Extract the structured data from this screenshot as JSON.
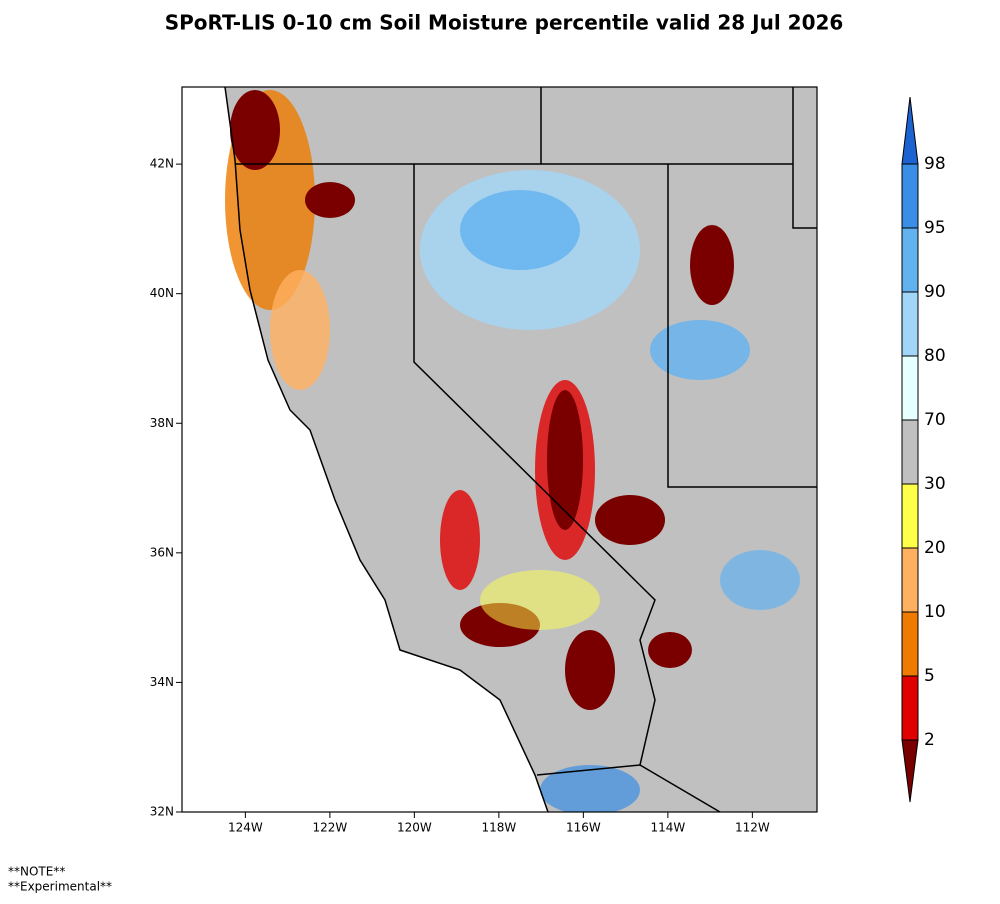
{
  "title": "SPoRT-LIS 0-10 cm Soil Moisture percentile valid 28 Jul 2026",
  "map": {
    "lonlim": [
      -125.5,
      -110.47
    ],
    "latlim": [
      32,
      43.19
    ],
    "lon_ticks": [
      {
        "value": -124,
        "label": "124W"
      },
      {
        "value": -122,
        "label": "122W"
      },
      {
        "value": -120,
        "label": "120W"
      },
      {
        "value": -118,
        "label": "118W"
      },
      {
        "value": -116,
        "label": "116W"
      },
      {
        "value": -114,
        "label": "114W"
      },
      {
        "value": -112,
        "label": "112W"
      }
    ],
    "lat_ticks": [
      {
        "value": 32,
        "label": "32N"
      },
      {
        "value": 34,
        "label": "34N"
      },
      {
        "value": 36,
        "label": "36N"
      },
      {
        "value": 38,
        "label": "38N"
      },
      {
        "value": 40,
        "label": "40N"
      },
      {
        "value": 42,
        "label": "42N"
      }
    ]
  },
  "colorbar": {
    "levels": [
      2,
      5,
      10,
      20,
      30,
      70,
      80,
      90,
      95,
      98
    ],
    "colors": [
      "#7a0000",
      "#e00000",
      "#ee7a00",
      "#ffb060",
      "#ffff4a",
      "#c0c0c0",
      "#e6ffff",
      "#a2d6f8",
      "#62b2f0",
      "#3a8ee6",
      "#1c62d0"
    ]
  },
  "notes": [
    "**NOTE**",
    "**Experimental**"
  ]
}
